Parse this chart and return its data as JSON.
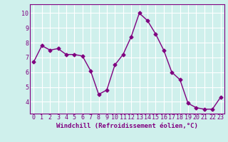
{
  "x": [
    0,
    1,
    2,
    3,
    4,
    5,
    6,
    7,
    8,
    9,
    10,
    11,
    12,
    13,
    14,
    15,
    16,
    17,
    18,
    19,
    20,
    21,
    22,
    23
  ],
  "y": [
    6.7,
    7.8,
    7.5,
    7.6,
    7.2,
    7.2,
    7.1,
    6.1,
    4.5,
    4.8,
    6.5,
    7.2,
    8.4,
    10.0,
    9.5,
    8.6,
    7.5,
    6.0,
    5.5,
    3.9,
    3.6,
    3.5,
    3.5,
    4.3
  ],
  "line_color": "#800080",
  "marker": "D",
  "markersize": 2.5,
  "linewidth": 1.0,
  "xlabel": "Windchill (Refroidissement éolien,°C)",
  "xlim": [
    -0.5,
    23.5
  ],
  "ylim": [
    3.2,
    10.6
  ],
  "yticks": [
    4,
    5,
    6,
    7,
    8,
    9,
    10
  ],
  "xticks": [
    0,
    1,
    2,
    3,
    4,
    5,
    6,
    7,
    8,
    9,
    10,
    11,
    12,
    13,
    14,
    15,
    16,
    17,
    18,
    19,
    20,
    21,
    22,
    23
  ],
  "background_color": "#cff0ec",
  "grid_color": "#ffffff",
  "axis_color": "#800080",
  "tick_color": "#800080",
  "label_color": "#800080",
  "xlabel_fontsize": 6.5,
  "tick_fontsize": 6.0
}
